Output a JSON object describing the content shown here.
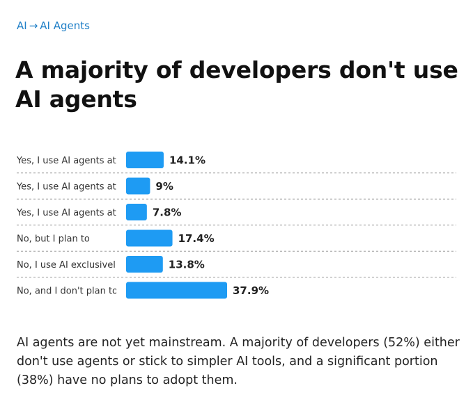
{
  "breadcrumb": {
    "root": "AI",
    "separator": "→",
    "current": "AI Agents"
  },
  "title": "A majority of developers don't use AI agents",
  "colors": {
    "bar": "#1e9bf3",
    "link": "#1f7fc7"
  },
  "chart_data": {
    "type": "bar",
    "orientation": "horizontal",
    "categories": [
      "Yes, I use AI agents at",
      "Yes, I use AI agents at",
      "Yes, I use AI agents at",
      "No, but I plan to",
      "No, I use AI exclusivel",
      "No, and I don't plan to"
    ],
    "values": [
      14.1,
      9,
      7.8,
      17.4,
      13.8,
      37.9
    ],
    "value_labels": [
      "14.1%",
      "9%",
      "7.8%",
      "17.4%",
      "13.8%",
      "37.9%"
    ],
    "unit": "%",
    "xlim": [
      0,
      37.9
    ],
    "title": "",
    "xlabel": "",
    "ylabel": ""
  },
  "summary": "AI agents are not yet mainstream. A majority of developers (52%) either don't use agents or stick to simpler AI tools, and a significant portion (38%) have no plans to adopt them."
}
